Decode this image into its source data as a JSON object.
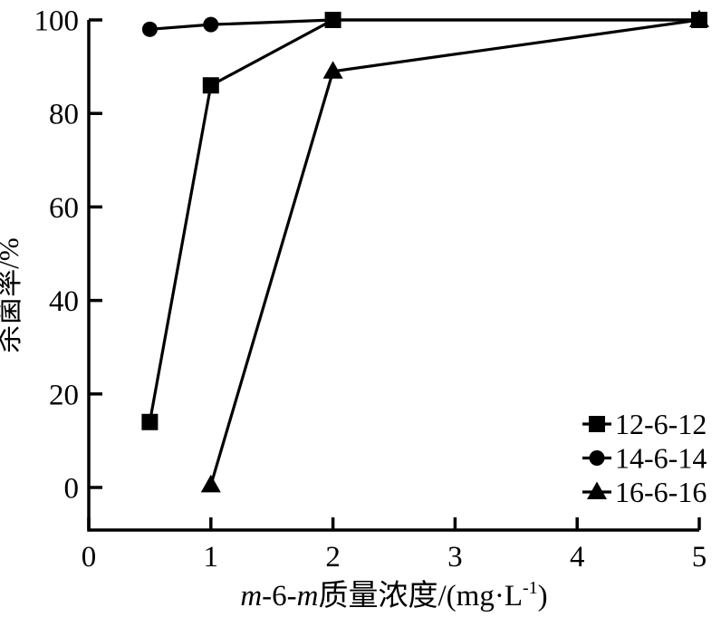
{
  "figure": {
    "background": "#ffffff",
    "ink_color": "#000000"
  },
  "chart_data": {
    "type": "line",
    "title": "",
    "xlabel": "m-6-m质量浓度/(mg·L⁻¹)",
    "xlabel_parts": [
      {
        "text": "m",
        "italic": true
      },
      {
        "text": "-6-",
        "italic": false
      },
      {
        "text": "m",
        "italic": true
      },
      {
        "text": "质量浓度/(mg·L",
        "italic": false
      },
      {
        "text": "-1",
        "sup": true
      },
      {
        "text": ")",
        "italic": false
      }
    ],
    "ylabel": "杀菌率/%",
    "xlim": [
      0,
      5
    ],
    "ylim": [
      0,
      100
    ],
    "xticks": [
      "0",
      "1",
      "2",
      "3",
      "4",
      "5"
    ],
    "yticks": [
      "0",
      "20",
      "40",
      "60",
      "80",
      "100"
    ],
    "grid": false,
    "legend_position": "lower-right",
    "series": [
      {
        "name": "12-6-12",
        "marker": "square",
        "color": "#000000",
        "points": [
          [
            0.5,
            14
          ],
          [
            1,
            86
          ],
          [
            2,
            100
          ],
          [
            5,
            100
          ]
        ]
      },
      {
        "name": "14-6-14",
        "marker": "circle",
        "color": "#000000",
        "points": [
          [
            0.5,
            98
          ],
          [
            1,
            99
          ],
          [
            2,
            100
          ],
          [
            5,
            100
          ]
        ]
      },
      {
        "name": "16-6-16",
        "marker": "triangle",
        "color": "#000000",
        "points": [
          [
            1,
            0.5
          ],
          [
            2,
            89
          ],
          [
            5,
            100
          ]
        ]
      }
    ]
  }
}
